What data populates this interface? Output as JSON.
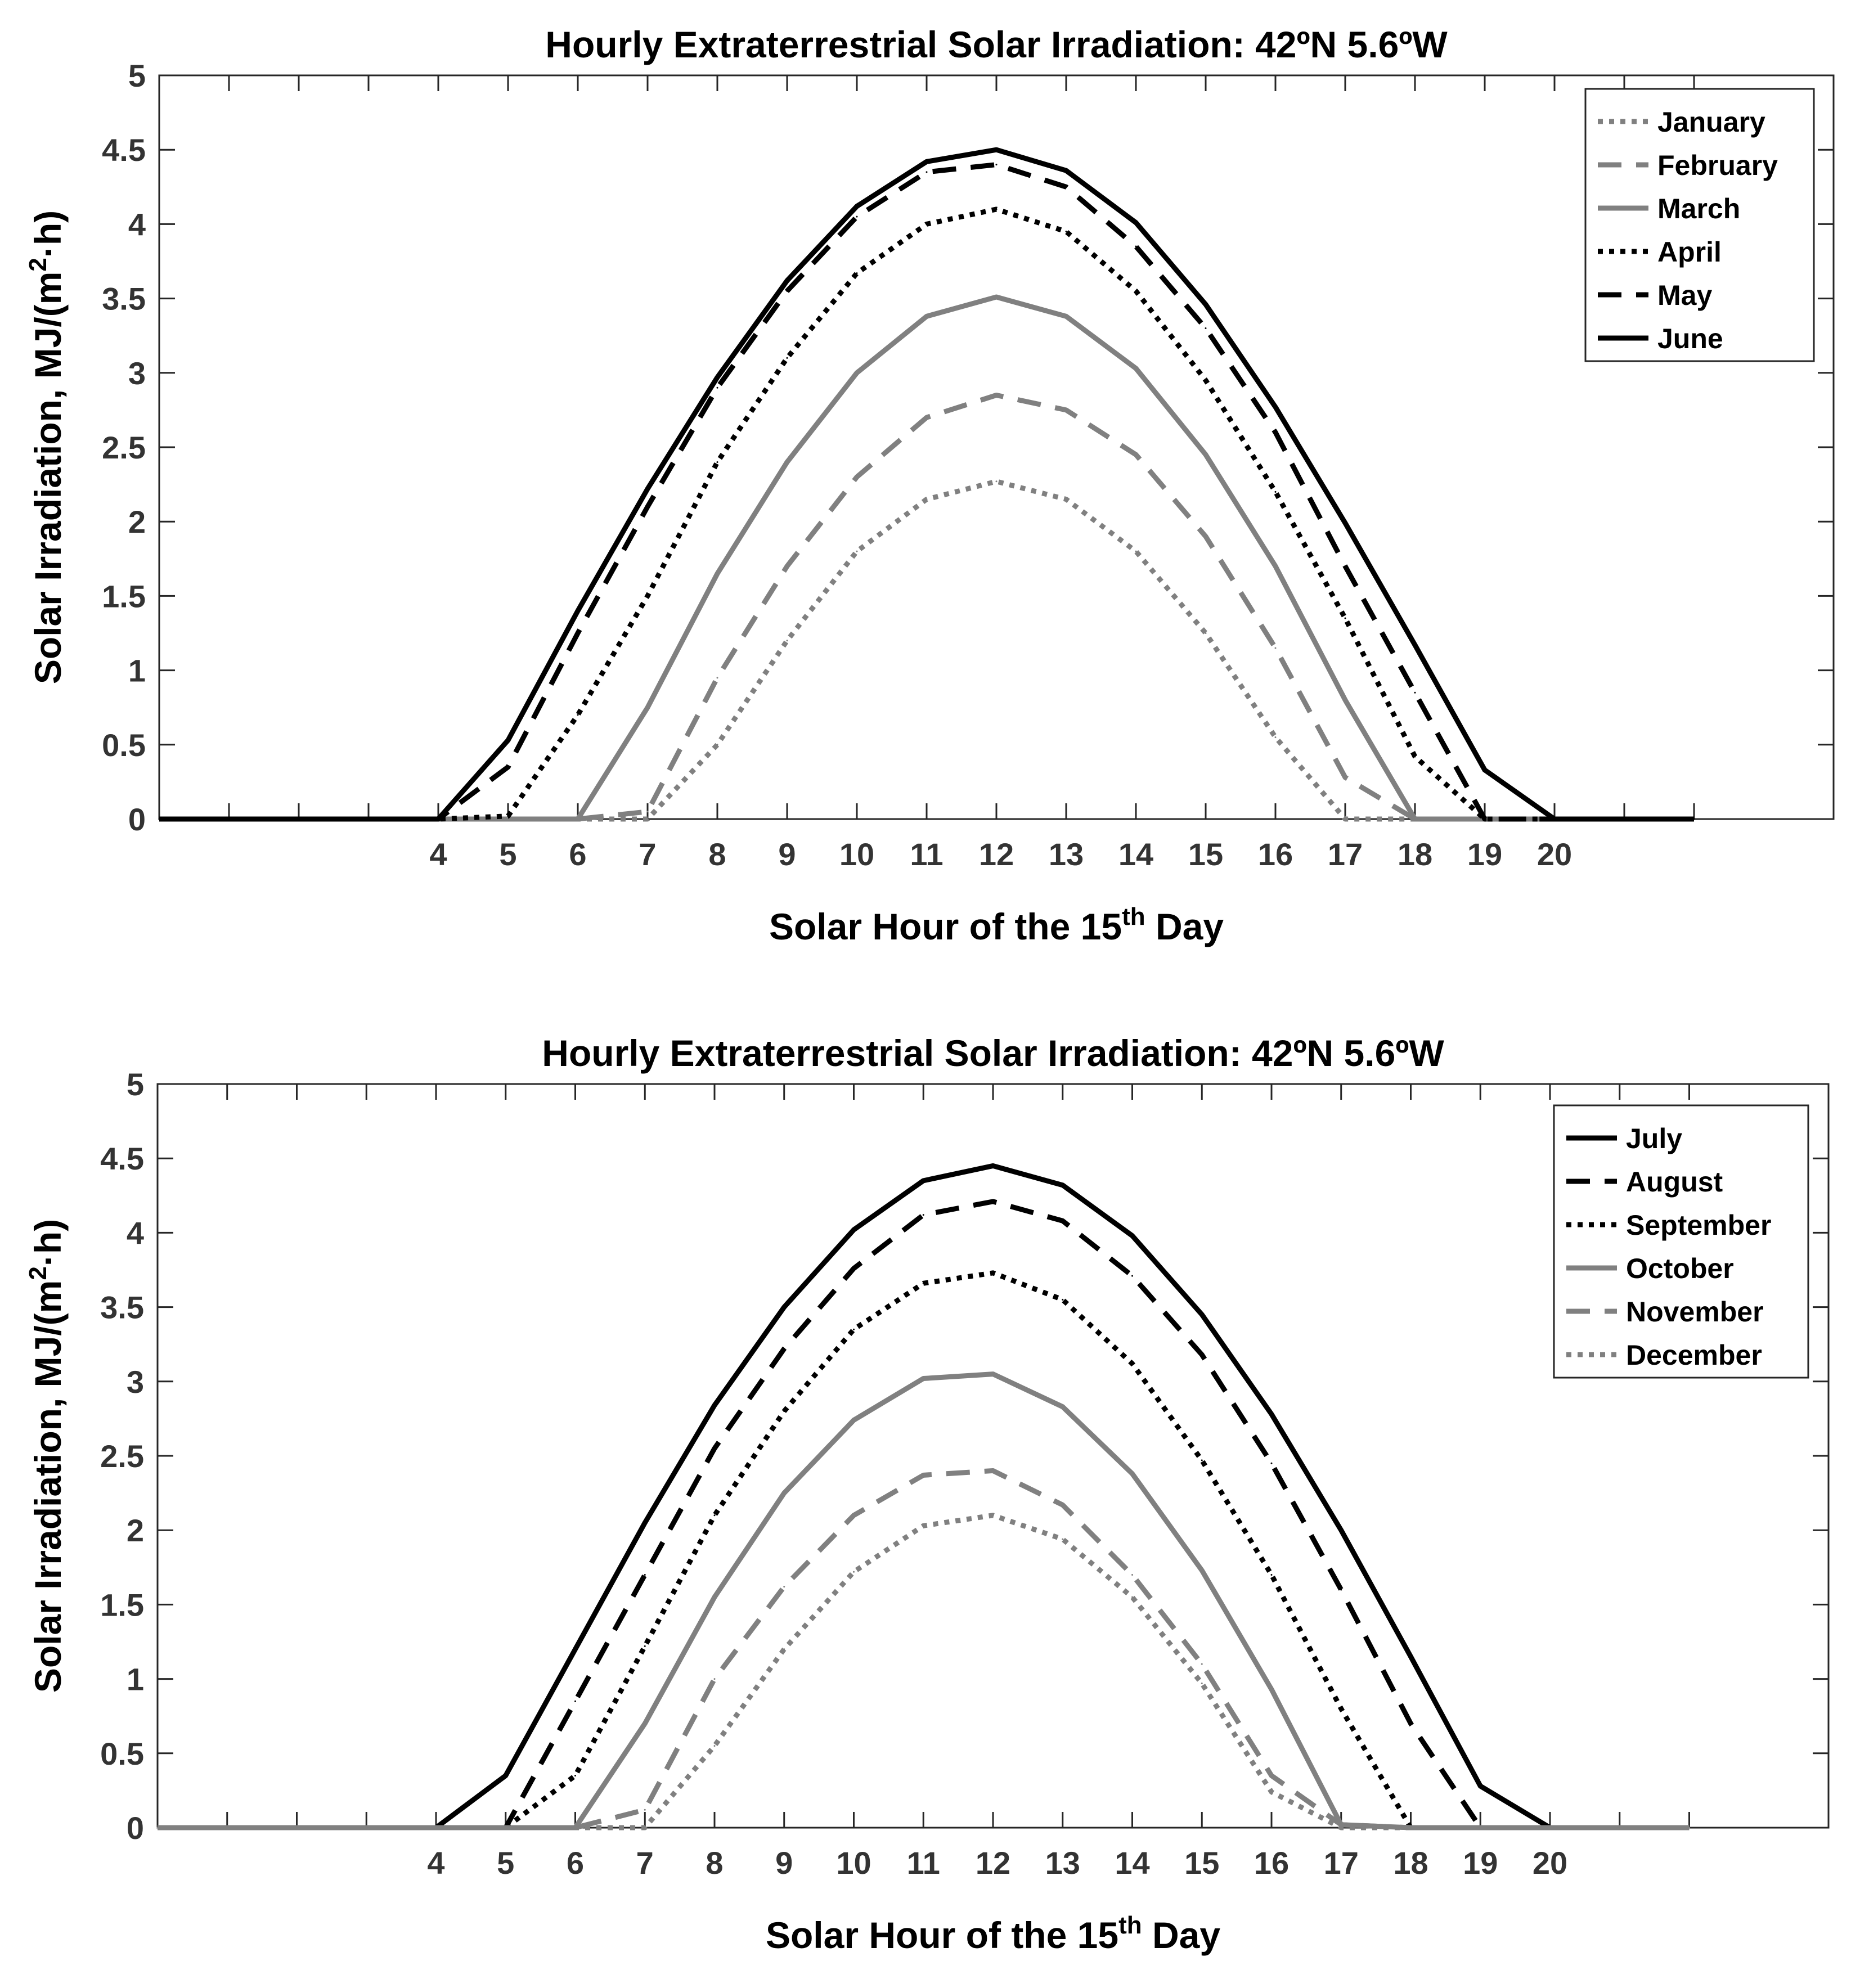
{
  "figure": {
    "description_label": "Two-panel line chart of hourly extraterrestrial solar irradiation"
  },
  "chart_data": [
    {
      "type": "line",
      "title": "Hourly Extraterrestrial Solar Irradiation: 42ºN 5.6ºW",
      "xlabel": {
        "pre": "Solar Hour of the 15",
        "sup": "th",
        "post": " Day"
      },
      "ylabel": {
        "pre": "Solar Irradiation, MJ/(m",
        "sup": "2",
        "post": "·h)"
      },
      "xlim": [
        0,
        24
      ],
      "ylim": [
        0,
        5
      ],
      "xticks": [
        4,
        5,
        6,
        7,
        8,
        9,
        10,
        11,
        12,
        13,
        14,
        15,
        16,
        17,
        18,
        19,
        20
      ],
      "yticks": [
        0,
        0.5,
        1,
        1.5,
        2,
        2.5,
        3,
        3.5,
        4,
        4.5,
        5
      ],
      "ytick_labels": [
        "0",
        "0.5",
        "1",
        "1.5",
        "2",
        "2.5",
        "3",
        "3.5",
        "4",
        "4.5",
        "5"
      ],
      "legend_position": "top-right",
      "grid": false,
      "x": [
        0,
        1,
        2,
        3,
        4,
        5,
        6,
        7,
        8,
        9,
        10,
        11,
        12,
        13,
        14,
        15,
        16,
        17,
        18,
        19,
        20,
        21,
        22
      ],
      "series": [
        {
          "name": "January",
          "color": "#808080",
          "style": "dotted",
          "values": [
            0,
            0,
            0,
            0,
            0,
            0,
            0,
            0,
            0.5,
            1.2,
            1.8,
            2.15,
            2.27,
            2.15,
            1.8,
            1.25,
            0.55,
            0,
            0,
            0,
            0,
            0,
            0
          ]
        },
        {
          "name": "February",
          "color": "#808080",
          "style": "dashed",
          "values": [
            0,
            0,
            0,
            0,
            0,
            0,
            0,
            0.05,
            0.95,
            1.7,
            2.3,
            2.7,
            2.85,
            2.75,
            2.45,
            1.9,
            1.15,
            0.28,
            0,
            0,
            0,
            0,
            0
          ]
        },
        {
          "name": "March",
          "color": "#808080",
          "style": "solid",
          "values": [
            0,
            0,
            0,
            0,
            0,
            0,
            0,
            0.75,
            1.65,
            2.4,
            3.0,
            3.38,
            3.51,
            3.38,
            3.03,
            2.45,
            1.7,
            0.8,
            0,
            0,
            0,
            0,
            0
          ]
        },
        {
          "name": "April",
          "color": "#000000",
          "style": "dotted",
          "values": [
            0,
            0,
            0,
            0,
            0,
            0.02,
            0.7,
            1.5,
            2.4,
            3.1,
            3.67,
            4.0,
            4.1,
            3.95,
            3.55,
            2.95,
            2.2,
            1.35,
            0.42,
            0,
            0,
            0,
            0
          ]
        },
        {
          "name": "May",
          "color": "#000000",
          "style": "dashed",
          "values": [
            0,
            0,
            0,
            0,
            0,
            0.35,
            1.25,
            2.1,
            2.9,
            3.55,
            4.05,
            4.35,
            4.4,
            4.25,
            3.85,
            3.3,
            2.6,
            1.7,
            0.85,
            0,
            0,
            0,
            0
          ]
        },
        {
          "name": "June",
          "color": "#000000",
          "style": "solid",
          "values": [
            0,
            0,
            0,
            0,
            0,
            0.53,
            1.4,
            2.22,
            2.97,
            3.62,
            4.12,
            4.42,
            4.5,
            4.36,
            4.01,
            3.46,
            2.77,
            1.99,
            1.17,
            0.33,
            0,
            0,
            0
          ]
        }
      ]
    },
    {
      "type": "line",
      "title": "Hourly Extraterrestrial Solar Irradiation: 42ºN 5.6ºW",
      "xlabel": {
        "pre": "Solar Hour of the 15",
        "sup": "th",
        "post": " Day"
      },
      "ylabel": {
        "pre": "Solar Irradiation, MJ/(m",
        "sup": "2",
        "post": "·h)"
      },
      "xlim": [
        0,
        24
      ],
      "ylim": [
        0,
        5
      ],
      "xticks": [
        4,
        5,
        6,
        7,
        8,
        9,
        10,
        11,
        12,
        13,
        14,
        15,
        16,
        17,
        18,
        19,
        20
      ],
      "yticks": [
        0,
        0.5,
        1,
        1.5,
        2,
        2.5,
        3,
        3.5,
        4,
        4.5,
        5
      ],
      "ytick_labels": [
        "0",
        "0.5",
        "1",
        "1.5",
        "2",
        "2.5",
        "3",
        "3.5",
        "4",
        "4.5",
        "5"
      ],
      "legend_position": "top-right",
      "grid": false,
      "x": [
        0,
        1,
        2,
        3,
        4,
        5,
        6,
        7,
        8,
        9,
        10,
        11,
        12,
        13,
        14,
        15,
        16,
        17,
        18,
        19,
        20,
        21,
        22
      ],
      "series": [
        {
          "name": "July",
          "color": "#000000",
          "style": "solid",
          "values": [
            0,
            0,
            0,
            0,
            0,
            0.35,
            1.2,
            2.05,
            2.84,
            3.5,
            4.02,
            4.35,
            4.45,
            4.32,
            3.98,
            3.45,
            2.78,
            2.0,
            1.15,
            0.28,
            0,
            0,
            0
          ]
        },
        {
          "name": "August",
          "color": "#000000",
          "style": "dashed",
          "values": [
            0,
            0,
            0,
            0,
            0,
            0,
            0.85,
            1.7,
            2.55,
            3.22,
            3.76,
            4.12,
            4.21,
            4.08,
            3.71,
            3.18,
            2.45,
            1.6,
            0.7,
            0,
            0,
            0,
            0
          ]
        },
        {
          "name": "September",
          "color": "#000000",
          "style": "dotted",
          "values": [
            0,
            0,
            0,
            0,
            0,
            0,
            0.35,
            1.22,
            2.1,
            2.8,
            3.35,
            3.66,
            3.73,
            3.55,
            3.12,
            2.47,
            1.7,
            0.8,
            0,
            0,
            0,
            0,
            0
          ]
        },
        {
          "name": "October",
          "color": "#808080",
          "style": "solid",
          "values": [
            0,
            0,
            0,
            0,
            0,
            0,
            0,
            0.7,
            1.55,
            2.25,
            2.74,
            3.02,
            3.05,
            2.83,
            2.38,
            1.73,
            0.93,
            0.02,
            0,
            0,
            0,
            0,
            0
          ]
        },
        {
          "name": "November",
          "color": "#808080",
          "style": "dashed",
          "values": [
            0,
            0,
            0,
            0,
            0,
            0,
            0,
            0.12,
            1.0,
            1.62,
            2.1,
            2.37,
            2.4,
            2.17,
            1.7,
            1.1,
            0.35,
            0.02,
            0,
            0,
            0,
            0,
            0
          ]
        },
        {
          "name": "December",
          "color": "#808080",
          "style": "dotted",
          "values": [
            0,
            0,
            0,
            0,
            0,
            0,
            0,
            0,
            0.55,
            1.2,
            1.72,
            2.03,
            2.1,
            1.94,
            1.55,
            0.97,
            0.24,
            0,
            0,
            0,
            0,
            0,
            0
          ]
        }
      ]
    }
  ]
}
